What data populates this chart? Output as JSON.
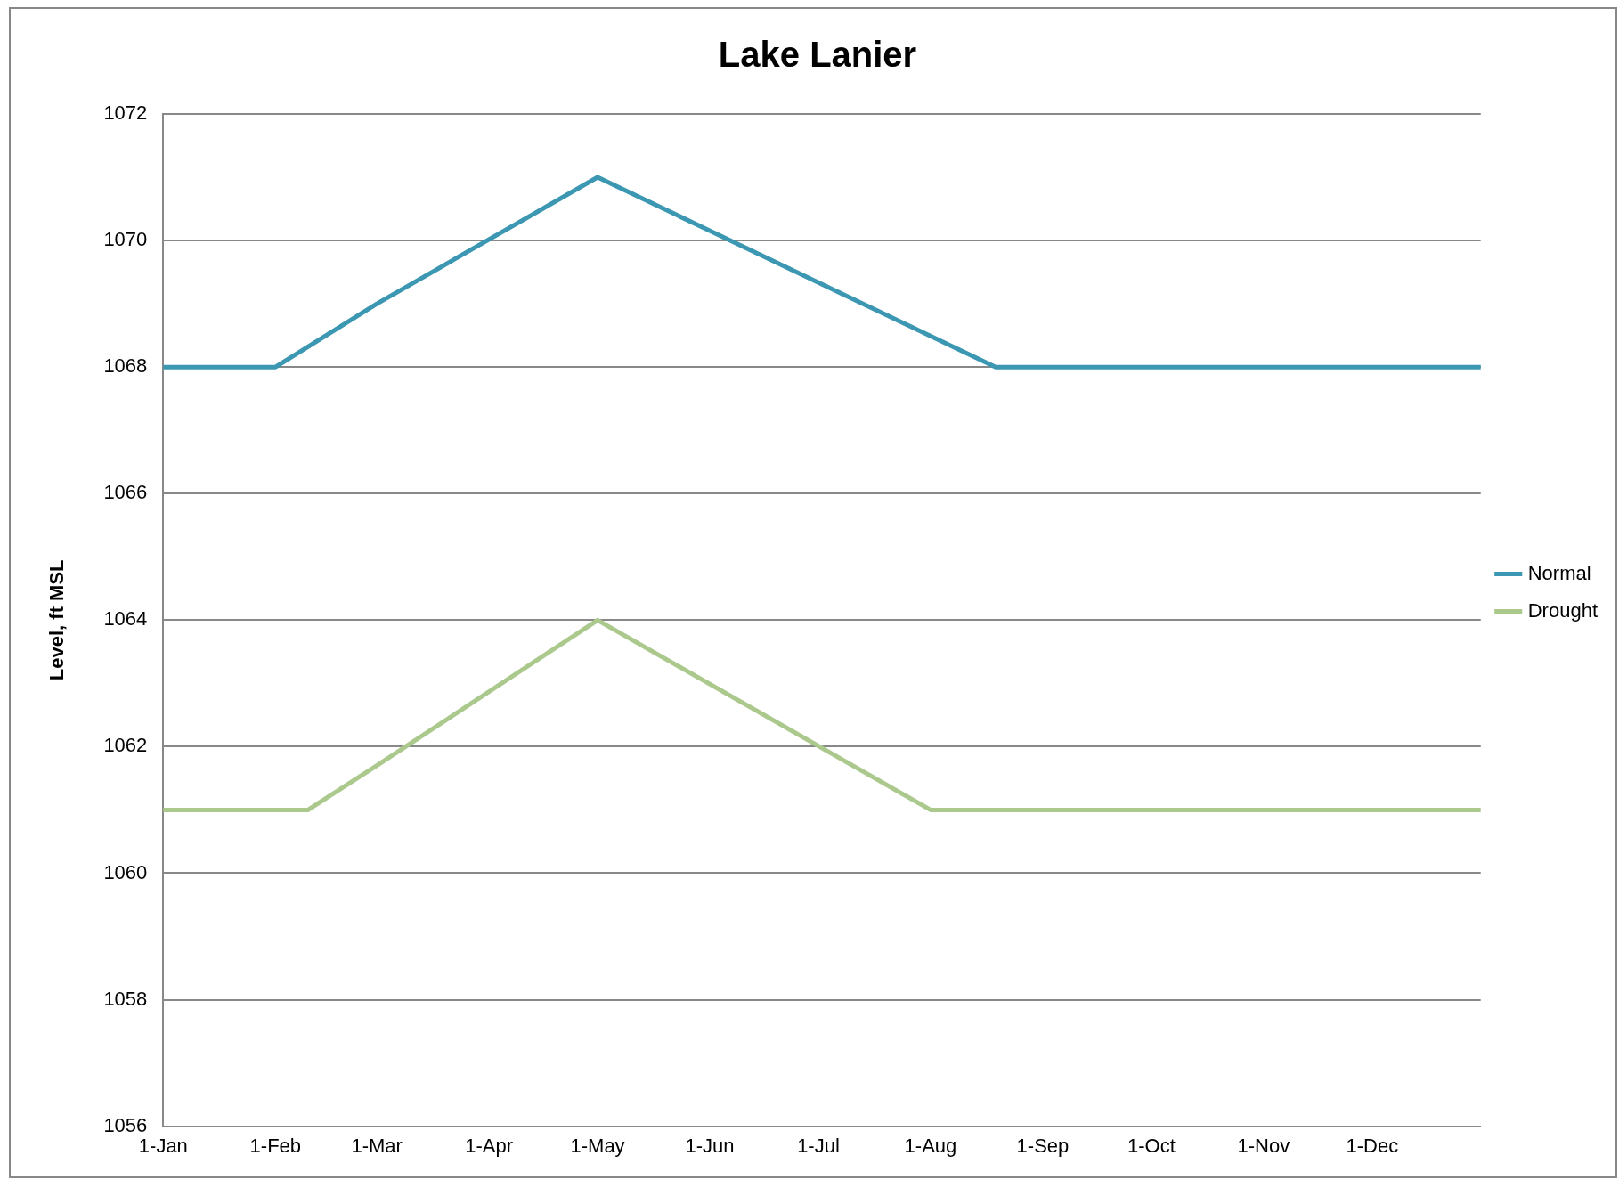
{
  "chart_data": {
    "type": "line",
    "title": "Lake Lanier",
    "ylabel": "Level, ft MSL",
    "series": [
      {
        "name": "Normal",
        "color": "#3b97b2",
        "x": [
          "--01-01",
          "--02-01",
          "--03-01",
          "--05-01",
          "--08-19",
          "--12-31"
        ],
        "values": [
          1068,
          1068,
          1069,
          1071,
          1068,
          1068
        ]
      },
      {
        "name": "Drought",
        "color": "#abc98c",
        "x": [
          "--01-01",
          "--02-10",
          "--03-01",
          "--05-01",
          "--08-01",
          "--12-31"
        ],
        "values": [
          1061,
          1061,
          1061.7,
          1064,
          1061,
          1061
        ]
      }
    ],
    "xlim": [
      "--01-01",
      "--12-31"
    ],
    "xticks": [
      {
        "value": "--01-01",
        "label": "1-Jan"
      },
      {
        "value": "--02-01",
        "label": "1-Feb"
      },
      {
        "value": "--03-01",
        "label": "1-Mar"
      },
      {
        "value": "--04-01",
        "label": "1-Apr"
      },
      {
        "value": "--05-01",
        "label": "1-May"
      },
      {
        "value": "--06-01",
        "label": "1-Jun"
      },
      {
        "value": "--07-01",
        "label": "1-Jul"
      },
      {
        "value": "--08-01",
        "label": "1-Aug"
      },
      {
        "value": "--09-01",
        "label": "1-Sep"
      },
      {
        "value": "--10-01",
        "label": "1-Oct"
      },
      {
        "value": "--11-01",
        "label": "1-Nov"
      },
      {
        "value": "--12-01",
        "label": "1-Dec"
      }
    ],
    "ylim": [
      1056,
      1072
    ],
    "yticks": [
      1056,
      1058,
      1060,
      1062,
      1064,
      1066,
      1068,
      1070,
      1072
    ],
    "grid": "y",
    "legend": "right",
    "marker": "none",
    "line_style": "solid"
  }
}
